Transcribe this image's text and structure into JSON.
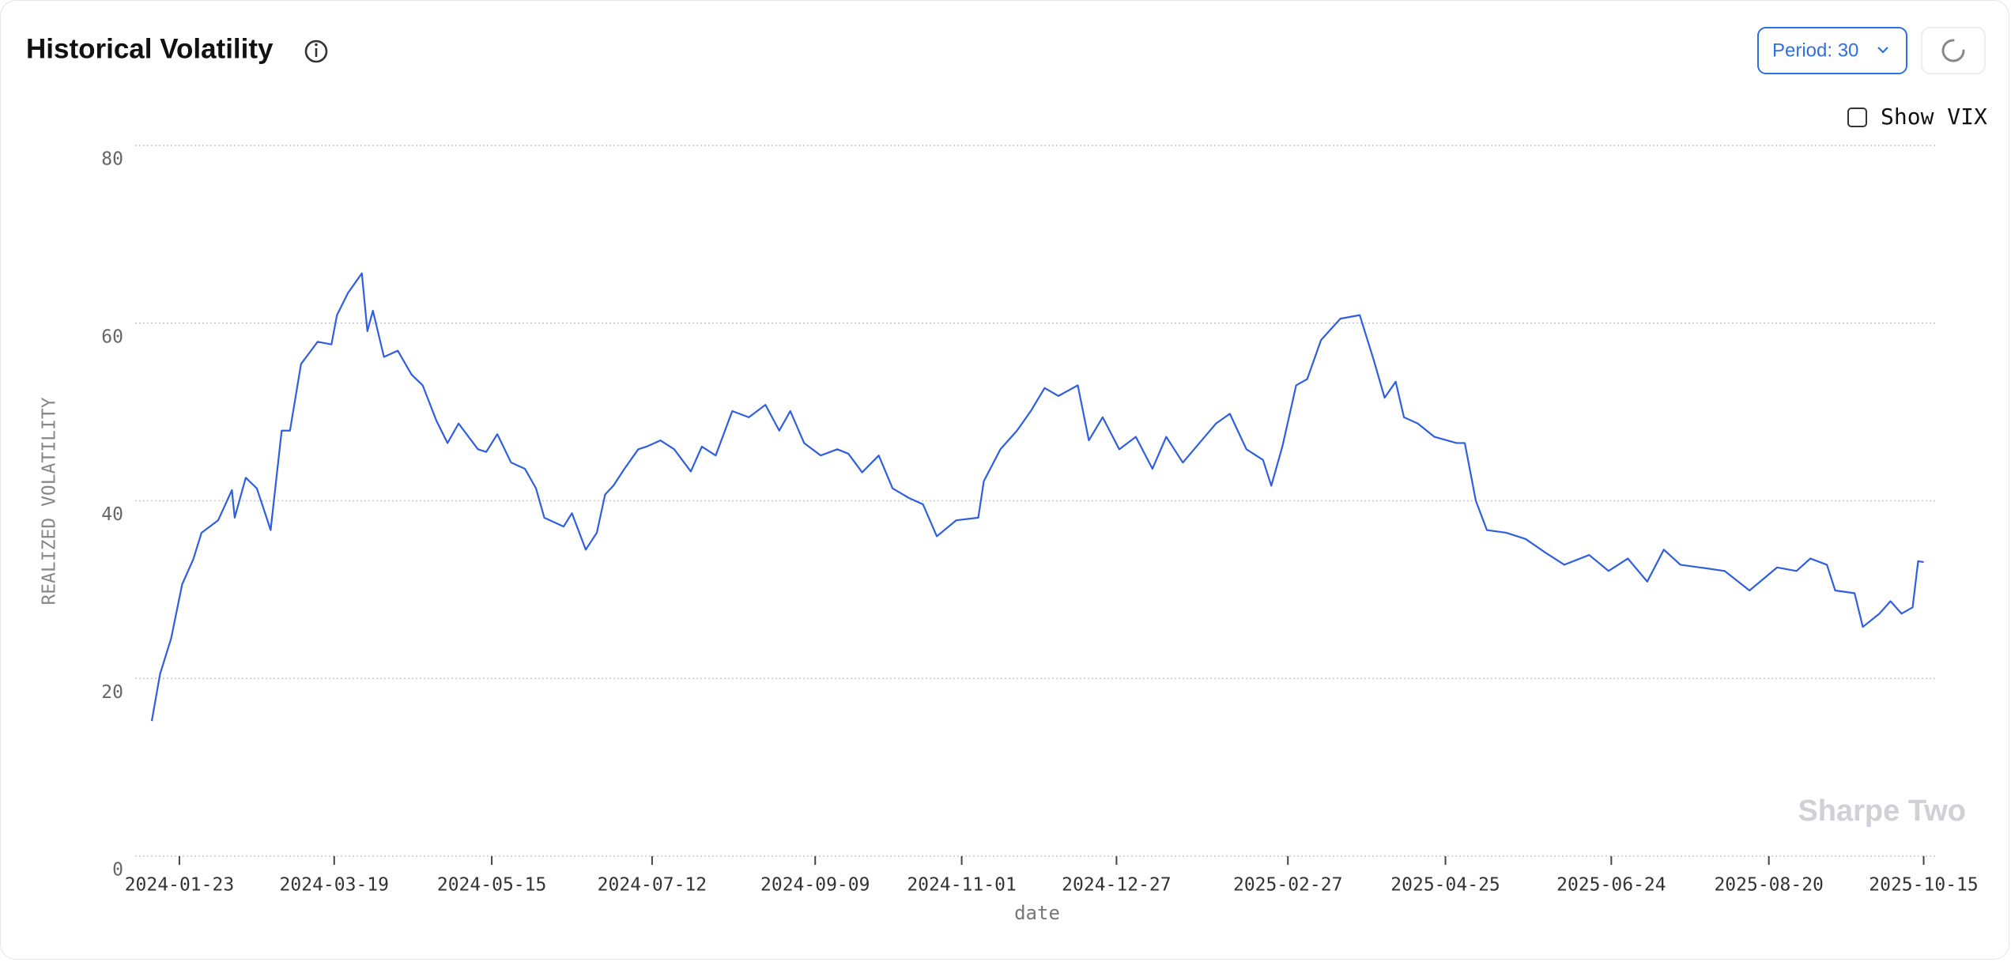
{
  "header": {
    "title": "Historical Volatility"
  },
  "controls": {
    "period": "Period: 30",
    "show_vix": "Show VIX"
  },
  "watermark": "Sharpe Two",
  "chart_data": {
    "type": "line",
    "x_label": "date",
    "y_label": "REALIZED VOLATILITY",
    "color": "#2f5fe0",
    "grid": true,
    "xlim": [
      "2024-01-07",
      "2025-10-20"
    ],
    "xticks": [
      "2024-01-23",
      "2024-03-19",
      "2024-05-15",
      "2024-07-12",
      "2024-09-09",
      "2024-11-01",
      "2024-12-27",
      "2025-02-27",
      "2025-04-25",
      "2025-06-24",
      "2025-08-20",
      "2025-10-15"
    ],
    "ylim": [
      0,
      80
    ],
    "yticks": [
      0,
      20,
      40,
      60,
      80
    ],
    "x": [
      "2024-01-13",
      "2024-01-16",
      "2024-01-20",
      "2024-01-24",
      "2024-01-28",
      "2024-01-31",
      "2024-02-06",
      "2024-02-11",
      "2024-02-12",
      "2024-02-16",
      "2024-02-20",
      "2024-02-23",
      "2024-02-25",
      "2024-02-29",
      "2024-03-03",
      "2024-03-07",
      "2024-03-13",
      "2024-03-18",
      "2024-03-20",
      "2024-03-24",
      "2024-03-29",
      "2024-03-31",
      "2024-04-02",
      "2024-04-06",
      "2024-04-11",
      "2024-04-16",
      "2024-04-20",
      "2024-04-25",
      "2024-04-29",
      "2024-05-03",
      "2024-05-10",
      "2024-05-13",
      "2024-05-17",
      "2024-05-22",
      "2024-05-27",
      "2024-05-31",
      "2024-06-03",
      "2024-06-10",
      "2024-06-13",
      "2024-06-18",
      "2024-06-22",
      "2024-06-25",
      "2024-06-28",
      "2024-07-02",
      "2024-07-07",
      "2024-07-10",
      "2024-07-15",
      "2024-07-20",
      "2024-07-26",
      "2024-07-30",
      "2024-08-04",
      "2024-08-10",
      "2024-08-16",
      "2024-08-22",
      "2024-08-27",
      "2024-08-31",
      "2024-09-05",
      "2024-09-11",
      "2024-09-17",
      "2024-09-21",
      "2024-09-26",
      "2024-10-02",
      "2024-10-07",
      "2024-10-13",
      "2024-10-18",
      "2024-10-23",
      "2024-10-30",
      "2024-11-07",
      "2024-11-09",
      "2024-11-15",
      "2024-11-21",
      "2024-11-26",
      "2024-12-01",
      "2024-12-06",
      "2024-12-13",
      "2024-12-17",
      "2024-12-22",
      "2024-12-28",
      "2025-01-03",
      "2025-01-09",
      "2025-01-14",
      "2025-01-20",
      "2025-01-26",
      "2025-02-01",
      "2025-02-06",
      "2025-02-12",
      "2025-02-18",
      "2025-02-21",
      "2025-02-25",
      "2025-03-02",
      "2025-03-06",
      "2025-03-11",
      "2025-03-18",
      "2025-03-25",
      "2025-03-30",
      "2025-04-03",
      "2025-04-07",
      "2025-04-10",
      "2025-04-15",
      "2025-04-21",
      "2025-04-29",
      "2025-05-02",
      "2025-05-06",
      "2025-05-10",
      "2025-05-17",
      "2025-05-24",
      "2025-05-31",
      "2025-06-07",
      "2025-06-16",
      "2025-06-23",
      "2025-06-30",
      "2025-07-07",
      "2025-07-13",
      "2025-07-19",
      "2025-07-26",
      "2025-08-04",
      "2025-08-13",
      "2025-08-23",
      "2025-08-30",
      "2025-09-04",
      "2025-09-10",
      "2025-09-13",
      "2025-09-20",
      "2025-09-23",
      "2025-09-29",
      "2025-10-03",
      "2025-10-07",
      "2025-10-11",
      "2025-10-13",
      "2025-10-15"
    ],
    "values": [
      15.2,
      20.5,
      24.5,
      30.6,
      33.4,
      36.4,
      37.8,
      41.2,
      38.1,
      42.6,
      41.4,
      38.6,
      36.7,
      47.9,
      47.9,
      55.4,
      57.9,
      57.6,
      60.9,
      63.4,
      65.6,
      59.1,
      61.4,
      56.2,
      56.9,
      54.2,
      53.0,
      49.0,
      46.5,
      48.7,
      45.8,
      45.5,
      47.5,
      44.3,
      43.6,
      41.4,
      38.1,
      37.1,
      38.6,
      34.5,
      36.4,
      40.7,
      41.7,
      43.6,
      45.8,
      46.1,
      46.8,
      45.8,
      43.3,
      46.1,
      45.1,
      50.1,
      49.4,
      50.8,
      47.9,
      50.1,
      46.5,
      45.1,
      45.8,
      45.3,
      43.2,
      45.1,
      41.4,
      40.3,
      39.6,
      36.0,
      37.8,
      38.1,
      42.2,
      45.8,
      47.9,
      50.1,
      52.7,
      51.8,
      53.0,
      46.8,
      49.4,
      45.8,
      47.2,
      43.6,
      47.2,
      44.3,
      46.5,
      48.7,
      49.8,
      45.8,
      44.6,
      41.7,
      46.1,
      53.0,
      53.7,
      58.1,
      60.5,
      60.9,
      55.9,
      51.6,
      53.4,
      49.4,
      48.7,
      47.2,
      46.5,
      46.5,
      40.0,
      36.7,
      36.4,
      35.7,
      34.2,
      32.8,
      33.9,
      32.1,
      33.5,
      30.9,
      34.5,
      32.8,
      32.5,
      32.1,
      29.9,
      32.5,
      32.1,
      33.5,
      32.8,
      29.9,
      29.6,
      25.8,
      27.3,
      28.7,
      27.3,
      28.0,
      33.2,
      33.1
    ]
  }
}
